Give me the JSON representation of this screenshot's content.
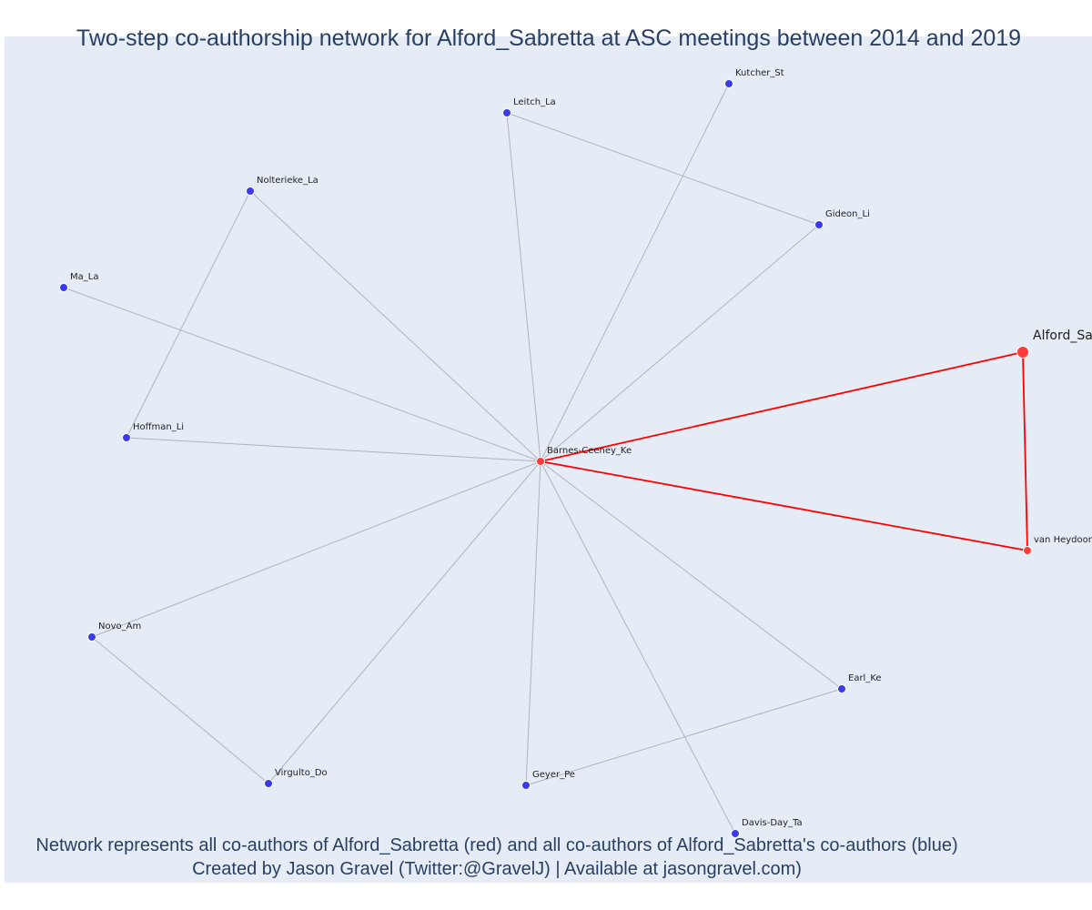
{
  "title": "Two-step co-authorship network for Alford_Sabretta at ASC meetings between 2014 and 2019",
  "caption": {
    "line1": "Network represents all co-authors of Alford_Sabretta (red) and all co-authors of Alford_Sabretta's co-authors (blue)",
    "line2": "Created by Jason Gravel (Twitter:@GravelJ) | Available at jasongravel.com)"
  },
  "colors": {
    "background": "#e5ecf6",
    "red": "#ff0000",
    "red_node": "#ff3b3b",
    "blue_node": "#3a3ae8",
    "grey_edge": "#b0b3bd",
    "title_text": "#2a3f5f"
  },
  "network": {
    "nodes": [
      {
        "id": "Alford_Sabretta",
        "label": "Alford_Sa",
        "group": "red",
        "role": "focal"
      },
      {
        "id": "Barnes-Ceeney_Ke",
        "label": "Barnes-Ceeney_Ke",
        "group": "red",
        "role": "coauthor"
      },
      {
        "id": "van Heydoorn",
        "label": "van Heydoorn",
        "group": "red",
        "role": "coauthor"
      },
      {
        "id": "Kutcher_St",
        "label": "Kutcher_St",
        "group": "blue",
        "role": "second-step"
      },
      {
        "id": "Leitch_La",
        "label": "Leitch_La",
        "group": "blue",
        "role": "second-step"
      },
      {
        "id": "Gideon_Li",
        "label": "Gideon_Li",
        "group": "blue",
        "role": "second-step"
      },
      {
        "id": "Nolterieke_La",
        "label": "Nolterieke_La",
        "group": "blue",
        "role": "second-step"
      },
      {
        "id": "Ma_La",
        "label": "Ma_La",
        "group": "blue",
        "role": "second-step"
      },
      {
        "id": "Hoffman_Li",
        "label": "Hoffman_Li",
        "group": "blue",
        "role": "second-step"
      },
      {
        "id": "Novo_Am",
        "label": "Novo_Am",
        "group": "blue",
        "role": "second-step"
      },
      {
        "id": "Virgulto_Do",
        "label": "Virgulto_Do",
        "group": "blue",
        "role": "second-step"
      },
      {
        "id": "Geyer_Pe",
        "label": "Geyer_Pe",
        "group": "blue",
        "role": "second-step"
      },
      {
        "id": "Davis-Day_Ta",
        "label": "Davis-Day_Ta",
        "group": "blue",
        "role": "second-step"
      },
      {
        "id": "Earl_Ke",
        "label": "Earl_Ke",
        "group": "blue",
        "role": "second-step"
      }
    ],
    "edges": [
      {
        "source": "Barnes-Ceeney_Ke",
        "target": "Alford_Sabretta",
        "type": "red"
      },
      {
        "source": "Barnes-Ceeney_Ke",
        "target": "van Heydoorn",
        "type": "red"
      },
      {
        "source": "Alford_Sabretta",
        "target": "van Heydoorn",
        "type": "red"
      },
      {
        "source": "Barnes-Ceeney_Ke",
        "target": "Kutcher_St",
        "type": "grey"
      },
      {
        "source": "Barnes-Ceeney_Ke",
        "target": "Leitch_La",
        "type": "grey"
      },
      {
        "source": "Barnes-Ceeney_Ke",
        "target": "Gideon_Li",
        "type": "grey"
      },
      {
        "source": "Barnes-Ceeney_Ke",
        "target": "Nolterieke_La",
        "type": "grey"
      },
      {
        "source": "Barnes-Ceeney_Ke",
        "target": "Ma_La",
        "type": "grey"
      },
      {
        "source": "Barnes-Ceeney_Ke",
        "target": "Hoffman_Li",
        "type": "grey"
      },
      {
        "source": "Barnes-Ceeney_Ke",
        "target": "Novo_Am",
        "type": "grey"
      },
      {
        "source": "Barnes-Ceeney_Ke",
        "target": "Virgulto_Do",
        "type": "grey"
      },
      {
        "source": "Barnes-Ceeney_Ke",
        "target": "Geyer_Pe",
        "type": "grey"
      },
      {
        "source": "Barnes-Ceeney_Ke",
        "target": "Davis-Day_Ta",
        "type": "grey"
      },
      {
        "source": "Barnes-Ceeney_Ke",
        "target": "Earl_Ke",
        "type": "grey"
      },
      {
        "source": "Leitch_La",
        "target": "Gideon_Li",
        "type": "grey"
      },
      {
        "source": "Nolterieke_La",
        "target": "Hoffman_Li",
        "type": "grey"
      },
      {
        "source": "Novo_Am",
        "target": "Virgulto_Do",
        "type": "grey"
      },
      {
        "source": "Geyer_Pe",
        "target": "Earl_Ke",
        "type": "grey"
      }
    ]
  }
}
